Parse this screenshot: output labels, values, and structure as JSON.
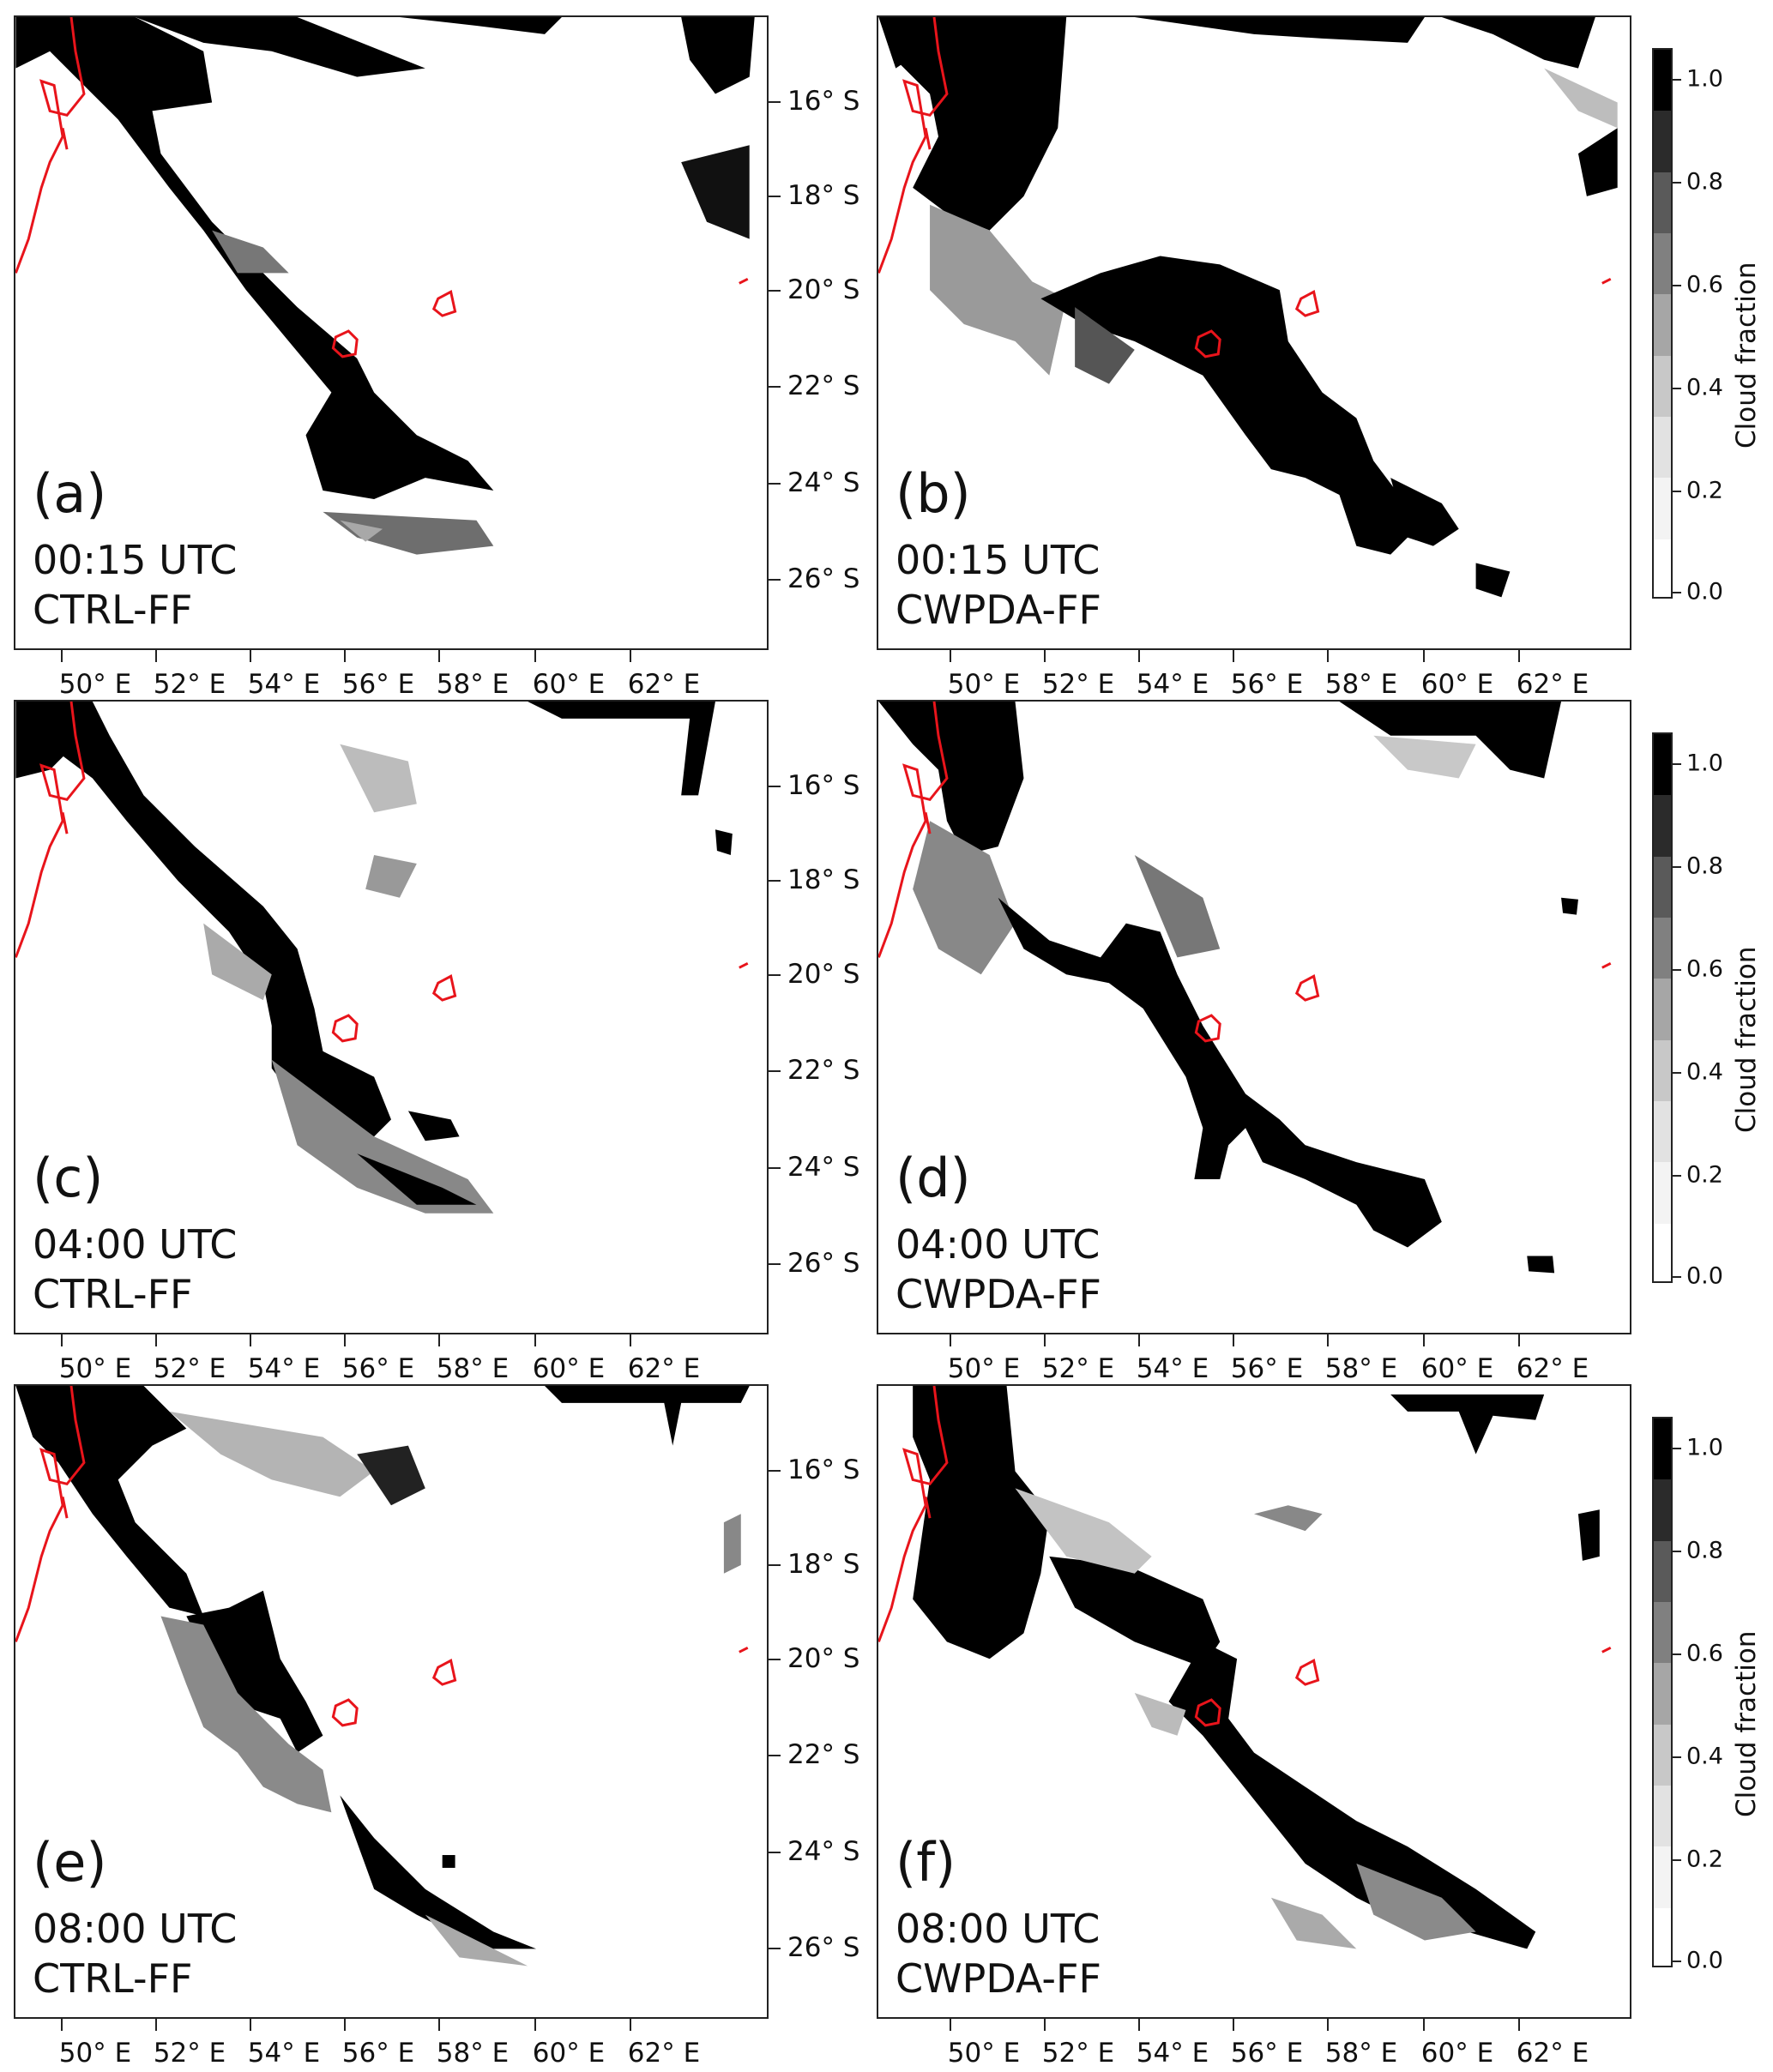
{
  "panels": [
    {
      "id": "a",
      "label": "(a)",
      "time": "00:15 UTC",
      "experiment": "CTRL-FF"
    },
    {
      "id": "b",
      "label": "(b)",
      "time": "00:15 UTC",
      "experiment": "CWPDA-FF"
    },
    {
      "id": "c",
      "label": "(c)",
      "time": "04:00 UTC",
      "experiment": "CTRL-FF"
    },
    {
      "id": "d",
      "label": "(d)",
      "time": "04:00 UTC",
      "experiment": "CWPDA-FF"
    },
    {
      "id": "e",
      "label": "(e)",
      "time": "08:00 UTC",
      "experiment": "CTRL-FF"
    },
    {
      "id": "f",
      "label": "(f)",
      "time": "08:00 UTC",
      "experiment": "CWPDA-FF"
    }
  ],
  "longitude_labels": [
    "50° E",
    "52° E",
    "54° E",
    "56° E",
    "58° E",
    "60° E",
    "62° E"
  ],
  "latitude_labels": [
    "16° S",
    "18° S",
    "20° S",
    "22° S",
    "24° S",
    "26° S"
  ],
  "colorbar": {
    "title": "Cloud fraction",
    "tick_labels": [
      "1.0",
      "0.8",
      "0.6",
      "0.4",
      "0.2",
      "0.0"
    ],
    "colors": [
      "#000000",
      "#2b2b2b",
      "#5a5a5a",
      "#808080",
      "#a6a6a6",
      "#c8c8c8",
      "#e2e2e2",
      "#f3f3f3",
      "#ffffff"
    ]
  },
  "colors": {
    "coastline": "#e8141b",
    "frame": "#222222"
  }
}
